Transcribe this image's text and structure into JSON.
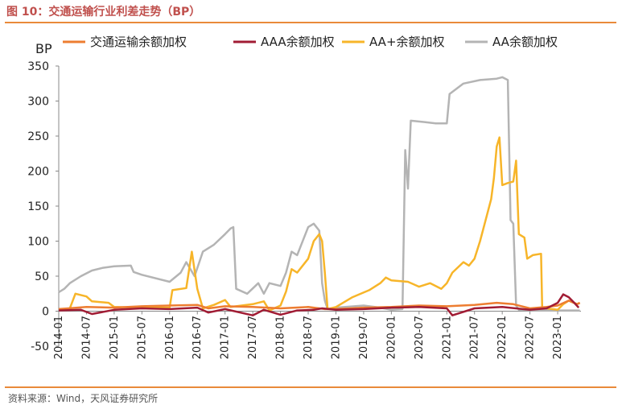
{
  "figure": {
    "title": "图 10：交通运输行业利差走势（BP）",
    "source": "资料来源：Wind，天风证券研究所"
  },
  "chart_data": {
    "type": "line",
    "title": "交通运输行业利差走势（BP）",
    "ylabel": "BP",
    "xlabel": "",
    "ylim": [
      -50,
      350
    ],
    "yticks": [
      -50,
      0,
      50,
      100,
      150,
      200,
      250,
      300,
      350
    ],
    "xlim": [
      2014.0,
      2023.42
    ],
    "xticks": [
      "2014-01",
      "2014-07",
      "2015-01",
      "2015-07",
      "2016-01",
      "2016-07",
      "2017-01",
      "2017-07",
      "2018-01",
      "2018-07",
      "2019-01",
      "2019-07",
      "2020-01",
      "2020-07",
      "2021-01",
      "2021-07",
      "2022-01",
      "2022-07",
      "2023-01"
    ],
    "legend_position": "top",
    "series": [
      {
        "name": "交通运输余额加权",
        "color": "#ed7d31",
        "points": [
          [
            2014.0,
            3
          ],
          [
            2014.5,
            6
          ],
          [
            2015.0,
            5
          ],
          [
            2015.5,
            7
          ],
          [
            2016.0,
            8
          ],
          [
            2016.5,
            9
          ],
          [
            2016.7,
            4
          ],
          [
            2017.0,
            7
          ],
          [
            2017.5,
            6
          ],
          [
            2018.0,
            4
          ],
          [
            2018.5,
            6
          ],
          [
            2018.8,
            3
          ],
          [
            2019.0,
            3
          ],
          [
            2019.5,
            5
          ],
          [
            2020.0,
            6
          ],
          [
            2020.5,
            8
          ],
          [
            2021.0,
            7
          ],
          [
            2021.5,
            9
          ],
          [
            2021.9,
            12
          ],
          [
            2022.2,
            10
          ],
          [
            2022.5,
            4
          ],
          [
            2022.8,
            6
          ],
          [
            2023.0,
            8
          ],
          [
            2023.2,
            15
          ],
          [
            2023.35,
            10
          ],
          [
            2023.4,
            12
          ]
        ]
      },
      {
        "name": "AAA余额加权",
        "color": "#a11c34",
        "points": [
          [
            2014.0,
            1
          ],
          [
            2014.4,
            2
          ],
          [
            2014.6,
            -4
          ],
          [
            2015.0,
            2
          ],
          [
            2015.5,
            4
          ],
          [
            2016.0,
            3
          ],
          [
            2016.5,
            5
          ],
          [
            2016.7,
            -2
          ],
          [
            2017.0,
            3
          ],
          [
            2017.5,
            -6
          ],
          [
            2017.7,
            2
          ],
          [
            2018.0,
            -5
          ],
          [
            2018.3,
            1
          ],
          [
            2018.6,
            2
          ],
          [
            2018.75,
            4
          ],
          [
            2019.0,
            2
          ],
          [
            2019.5,
            3
          ],
          [
            2020.0,
            5
          ],
          [
            2020.5,
            6
          ],
          [
            2021.0,
            4
          ],
          [
            2021.1,
            -6
          ],
          [
            2021.5,
            4
          ],
          [
            2022.0,
            6
          ],
          [
            2022.5,
            2
          ],
          [
            2022.8,
            4
          ],
          [
            2023.0,
            12
          ],
          [
            2023.1,
            24
          ],
          [
            2023.2,
            20
          ],
          [
            2023.3,
            12
          ],
          [
            2023.38,
            5
          ]
        ]
      },
      {
        "name": "AA+余额加权",
        "color": "#f7b529",
        "points": [
          [
            2014.0,
            2
          ],
          [
            2014.2,
            4
          ],
          [
            2014.3,
            25
          ],
          [
            2014.5,
            21
          ],
          [
            2014.6,
            14
          ],
          [
            2014.9,
            12
          ],
          [
            2015.0,
            6
          ],
          [
            2015.5,
            5
          ],
          [
            2016.0,
            5
          ],
          [
            2016.05,
            30
          ],
          [
            2016.3,
            33
          ],
          [
            2016.4,
            85
          ],
          [
            2016.5,
            32
          ],
          [
            2016.6,
            4
          ],
          [
            2016.8,
            9
          ],
          [
            2017.0,
            16
          ],
          [
            2017.1,
            6
          ],
          [
            2017.5,
            10
          ],
          [
            2017.7,
            14
          ],
          [
            2017.8,
            1
          ],
          [
            2018.0,
            8
          ],
          [
            2018.1,
            28
          ],
          [
            2018.2,
            60
          ],
          [
            2018.3,
            55
          ],
          [
            2018.5,
            75
          ],
          [
            2018.6,
            100
          ],
          [
            2018.7,
            110
          ],
          [
            2018.75,
            100
          ],
          [
            2018.8,
            55
          ],
          [
            2018.85,
            3
          ],
          [
            2019.0,
            6
          ],
          [
            2019.3,
            20
          ],
          [
            2019.6,
            30
          ],
          [
            2019.8,
            40
          ],
          [
            2019.9,
            48
          ],
          [
            2020.0,
            44
          ],
          [
            2020.3,
            42
          ],
          [
            2020.5,
            35
          ],
          [
            2020.7,
            40
          ],
          [
            2020.9,
            32
          ],
          [
            2021.0,
            40
          ],
          [
            2021.1,
            55
          ],
          [
            2021.3,
            70
          ],
          [
            2021.4,
            65
          ],
          [
            2021.5,
            75
          ],
          [
            2021.6,
            100
          ],
          [
            2021.7,
            130
          ],
          [
            2021.8,
            160
          ],
          [
            2021.85,
            190
          ],
          [
            2021.9,
            235
          ],
          [
            2021.95,
            248
          ],
          [
            2022.0,
            180
          ],
          [
            2022.1,
            183
          ],
          [
            2022.2,
            185
          ],
          [
            2022.25,
            215
          ],
          [
            2022.3,
            110
          ],
          [
            2022.4,
            105
          ],
          [
            2022.45,
            75
          ],
          [
            2022.55,
            80
          ],
          [
            2022.7,
            82
          ],
          [
            2022.72,
            5
          ],
          [
            2022.8,
            4
          ],
          [
            2023.0,
            2
          ],
          [
            2023.1,
            10
          ],
          [
            2023.2,
            15
          ],
          [
            2023.35,
            10
          ],
          [
            2023.4,
            12
          ]
        ]
      },
      {
        "name": "AA余额加权",
        "color": "#b4b4b4",
        "points": [
          [
            2014.0,
            27
          ],
          [
            2014.1,
            32
          ],
          [
            2014.2,
            40
          ],
          [
            2014.4,
            50
          ],
          [
            2014.6,
            58
          ],
          [
            2014.8,
            62
          ],
          [
            2015.0,
            64
          ],
          [
            2015.3,
            65
          ],
          [
            2015.35,
            56
          ],
          [
            2015.5,
            52
          ],
          [
            2016.0,
            42
          ],
          [
            2016.2,
            55
          ],
          [
            2016.3,
            70
          ],
          [
            2016.45,
            50
          ],
          [
            2016.6,
            85
          ],
          [
            2016.8,
            95
          ],
          [
            2017.0,
            110
          ],
          [
            2017.1,
            118
          ],
          [
            2017.15,
            120
          ],
          [
            2017.2,
            32
          ],
          [
            2017.4,
            25
          ],
          [
            2017.6,
            40
          ],
          [
            2017.7,
            25
          ],
          [
            2017.8,
            40
          ],
          [
            2018.0,
            36
          ],
          [
            2018.1,
            55
          ],
          [
            2018.2,
            85
          ],
          [
            2018.3,
            80
          ],
          [
            2018.5,
            120
          ],
          [
            2018.6,
            125
          ],
          [
            2018.7,
            115
          ],
          [
            2018.75,
            40
          ],
          [
            2018.8,
            15
          ],
          [
            2018.85,
            3
          ],
          [
            2019.0,
            5
          ],
          [
            2019.5,
            8
          ],
          [
            2019.8,
            5
          ],
          [
            2020.0,
            2
          ],
          [
            2020.2,
            3
          ],
          [
            2020.25,
            230
          ],
          [
            2020.3,
            175
          ],
          [
            2020.35,
            272
          ],
          [
            2020.6,
            270
          ],
          [
            2020.8,
            268
          ],
          [
            2021.0,
            268
          ],
          [
            2021.05,
            310
          ],
          [
            2021.3,
            325
          ],
          [
            2021.6,
            330
          ],
          [
            2021.9,
            332
          ],
          [
            2022.0,
            334
          ],
          [
            2022.1,
            330
          ],
          [
            2022.15,
            130
          ],
          [
            2022.2,
            125
          ],
          [
            2022.25,
            8
          ],
          [
            2022.3,
            2
          ],
          [
            2022.6,
            1
          ],
          [
            2023.0,
            1
          ],
          [
            2023.4,
            1
          ]
        ]
      }
    ]
  }
}
